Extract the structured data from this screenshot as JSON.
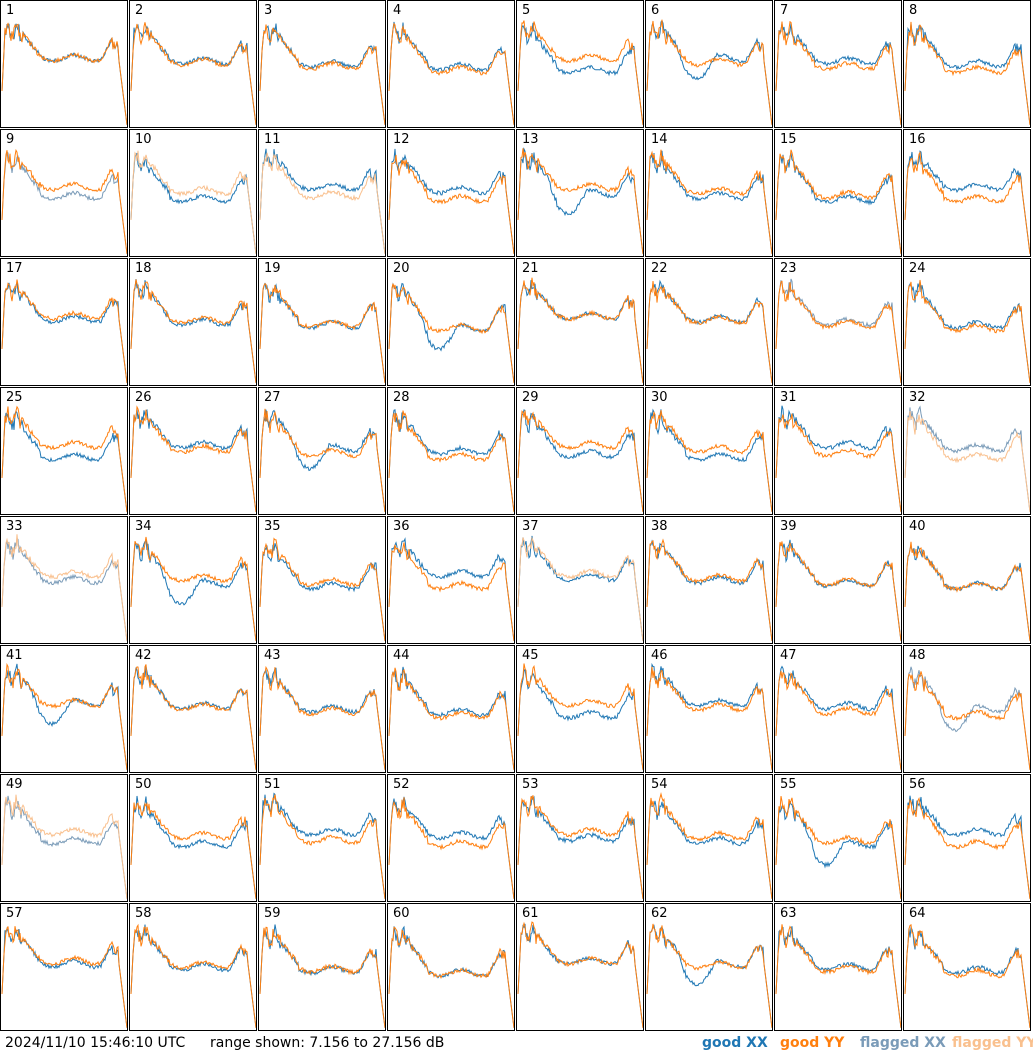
{
  "footer": {
    "timestamp": "2024/11/10 15:46:10 UTC",
    "range_text": "range shown: 7.156 to 27.156 dB"
  },
  "legend": {
    "good_xx": "good XX",
    "good_yy": "good YY",
    "flagged_xx": "flagged XX",
    "flagged_yy": "flagged YY"
  },
  "colors": {
    "good_xx": "#1f77b4",
    "good_yy": "#ff7f0e",
    "flagged_xx": "#7a9bb8",
    "flagged_yy": "#f9c08e"
  },
  "chart_data": {
    "type": "line",
    "ylim": [
      7.156,
      27.156
    ],
    "grid": false,
    "legend_placement": "bottom-right",
    "panels": [
      {
        "label": "1",
        "xx": "good",
        "yy": "good"
      },
      {
        "label": "2",
        "xx": "good",
        "yy": "good"
      },
      {
        "label": "3",
        "xx": "good",
        "yy": "good"
      },
      {
        "label": "4",
        "xx": "good",
        "yy": "good"
      },
      {
        "label": "5",
        "xx": "good",
        "yy": "good"
      },
      {
        "label": "6",
        "xx": "good",
        "yy": "good"
      },
      {
        "label": "7",
        "xx": "good",
        "yy": "good"
      },
      {
        "label": "8",
        "xx": "good",
        "yy": "good"
      },
      {
        "label": "9",
        "xx": "flagged",
        "yy": "good"
      },
      {
        "label": "10",
        "xx": "good",
        "yy": "flagged"
      },
      {
        "label": "11",
        "xx": "good",
        "yy": "flagged"
      },
      {
        "label": "12",
        "xx": "good",
        "yy": "good"
      },
      {
        "label": "13",
        "xx": "good",
        "yy": "good"
      },
      {
        "label": "14",
        "xx": "good",
        "yy": "good"
      },
      {
        "label": "15",
        "xx": "good",
        "yy": "good"
      },
      {
        "label": "16",
        "xx": "good",
        "yy": "good"
      },
      {
        "label": "17",
        "xx": "good",
        "yy": "good"
      },
      {
        "label": "18",
        "xx": "good",
        "yy": "good"
      },
      {
        "label": "19",
        "xx": "good",
        "yy": "good"
      },
      {
        "label": "20",
        "xx": "good",
        "yy": "good"
      },
      {
        "label": "21",
        "xx": "good",
        "yy": "good"
      },
      {
        "label": "22",
        "xx": "good",
        "yy": "good"
      },
      {
        "label": "23",
        "xx": "flagged",
        "yy": "good"
      },
      {
        "label": "24",
        "xx": "good",
        "yy": "good"
      },
      {
        "label": "25",
        "xx": "good",
        "yy": "good"
      },
      {
        "label": "26",
        "xx": "good",
        "yy": "good"
      },
      {
        "label": "27",
        "xx": "good",
        "yy": "good"
      },
      {
        "label": "28",
        "xx": "good",
        "yy": "good"
      },
      {
        "label": "29",
        "xx": "good",
        "yy": "good"
      },
      {
        "label": "30",
        "xx": "good",
        "yy": "good"
      },
      {
        "label": "31",
        "xx": "good",
        "yy": "good"
      },
      {
        "label": "32",
        "xx": "flagged",
        "yy": "flagged"
      },
      {
        "label": "33",
        "xx": "flagged",
        "yy": "flagged"
      },
      {
        "label": "34",
        "xx": "good",
        "yy": "good"
      },
      {
        "label": "35",
        "xx": "good",
        "yy": "good"
      },
      {
        "label": "36",
        "xx": "good",
        "yy": "good"
      },
      {
        "label": "37",
        "xx": "good",
        "yy": "flagged"
      },
      {
        "label": "38",
        "xx": "good",
        "yy": "good"
      },
      {
        "label": "39",
        "xx": "good",
        "yy": "good"
      },
      {
        "label": "40",
        "xx": "good",
        "yy": "good"
      },
      {
        "label": "41",
        "xx": "good",
        "yy": "good"
      },
      {
        "label": "42",
        "xx": "good",
        "yy": "good"
      },
      {
        "label": "43",
        "xx": "good",
        "yy": "good"
      },
      {
        "label": "44",
        "xx": "good",
        "yy": "good"
      },
      {
        "label": "45",
        "xx": "good",
        "yy": "good"
      },
      {
        "label": "46",
        "xx": "good",
        "yy": "good"
      },
      {
        "label": "47",
        "xx": "good",
        "yy": "good"
      },
      {
        "label": "48",
        "xx": "flagged",
        "yy": "good"
      },
      {
        "label": "49",
        "xx": "flagged",
        "yy": "flagged"
      },
      {
        "label": "50",
        "xx": "good",
        "yy": "good"
      },
      {
        "label": "51",
        "xx": "good",
        "yy": "good"
      },
      {
        "label": "52",
        "xx": "good",
        "yy": "good"
      },
      {
        "label": "53",
        "xx": "good",
        "yy": "good"
      },
      {
        "label": "54",
        "xx": "good",
        "yy": "good"
      },
      {
        "label": "55",
        "xx": "good",
        "yy": "good"
      },
      {
        "label": "56",
        "xx": "good",
        "yy": "good"
      },
      {
        "label": "57",
        "xx": "good",
        "yy": "good"
      },
      {
        "label": "58",
        "xx": "good",
        "yy": "good"
      },
      {
        "label": "59",
        "xx": "good",
        "yy": "good"
      },
      {
        "label": "60",
        "xx": "good",
        "yy": "good"
      },
      {
        "label": "61",
        "xx": "good",
        "yy": "good"
      },
      {
        "label": "62",
        "xx": "good",
        "yy": "good"
      },
      {
        "label": "63",
        "xx": "good",
        "yy": "good"
      },
      {
        "label": "64",
        "xx": "good",
        "yy": "good"
      }
    ]
  }
}
